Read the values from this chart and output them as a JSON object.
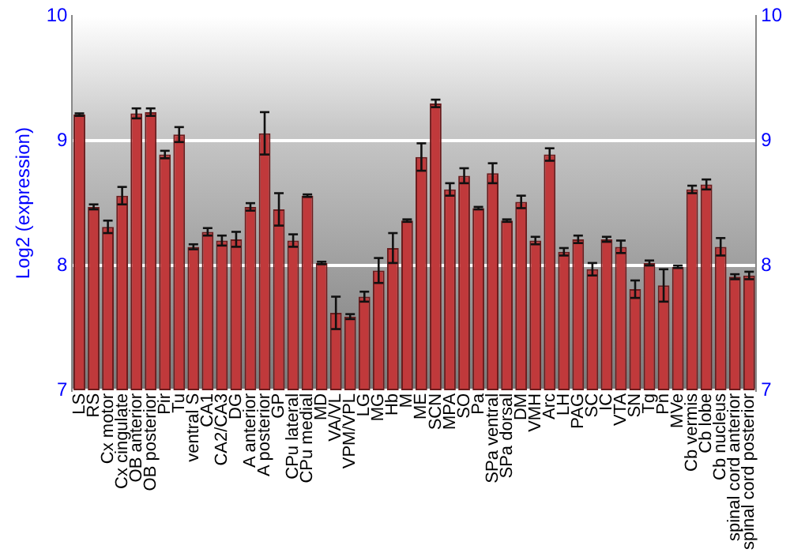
{
  "chart_data": {
    "type": "bar",
    "ylabel": "Log2 (expression)",
    "categories": [
      "LS",
      "RS",
      "Cx motor",
      "Cx cingulate",
      "OB anterior",
      "OB posterior",
      "Pir",
      "Tu",
      "ventral S",
      "CA1",
      "CA2/CA3",
      "DG",
      "A anterior",
      "A posterior",
      "GP",
      "CPu lateral",
      "CPu medial",
      "MD",
      "VA/VL",
      "VPM/VPL",
      "LG",
      "MG",
      "Hb",
      "M",
      "ME",
      "SCN",
      "MPA",
      "SO",
      "Pa",
      "SPa ventral",
      "SPa dorsal",
      "DM",
      "VMH",
      "Arc",
      "LH",
      "PAG",
      "SC",
      "IC",
      "VTA",
      "SN",
      "Tg",
      "Pn",
      "MVe",
      "Cb vermis",
      "Cb lobe",
      "Cb nucleus",
      "spinal cord anterior",
      "spinal cord posterior"
    ],
    "values": [
      9.21,
      8.47,
      8.31,
      8.56,
      9.22,
      9.23,
      8.89,
      9.05,
      8.15,
      8.27,
      8.2,
      8.21,
      8.47,
      9.06,
      8.45,
      8.2,
      8.56,
      8.02,
      7.62,
      7.59,
      7.75,
      7.96,
      8.14,
      8.36,
      8.87,
      9.3,
      8.61,
      8.72,
      8.46,
      8.74,
      8.36,
      8.51,
      8.2,
      8.89,
      8.11,
      8.21,
      7.97,
      8.21,
      8.15,
      7.81,
      8.02,
      7.84,
      7.99,
      8.61,
      8.65,
      8.15,
      7.91,
      7.92
    ],
    "errors": [
      0.01,
      0.02,
      0.05,
      0.07,
      0.04,
      0.03,
      0.03,
      0.06,
      0.02,
      0.03,
      0.04,
      0.06,
      0.03,
      0.17,
      0.13,
      0.05,
      0.01,
      0.01,
      0.13,
      0.02,
      0.04,
      0.1,
      0.12,
      0.01,
      0.11,
      0.03,
      0.05,
      0.06,
      0.01,
      0.08,
      0.01,
      0.05,
      0.03,
      0.05,
      0.03,
      0.03,
      0.05,
      0.02,
      0.05,
      0.07,
      0.02,
      0.13,
      0.01,
      0.03,
      0.04,
      0.07,
      0.02,
      0.03
    ],
    "color": "#c0393b",
    "ylim": [
      7,
      10
    ],
    "yticks": [
      7,
      8,
      9,
      10
    ],
    "y2lim": [
      7,
      10
    ],
    "y2ticks": [
      7,
      8,
      9,
      10
    ],
    "grid": "y"
  }
}
